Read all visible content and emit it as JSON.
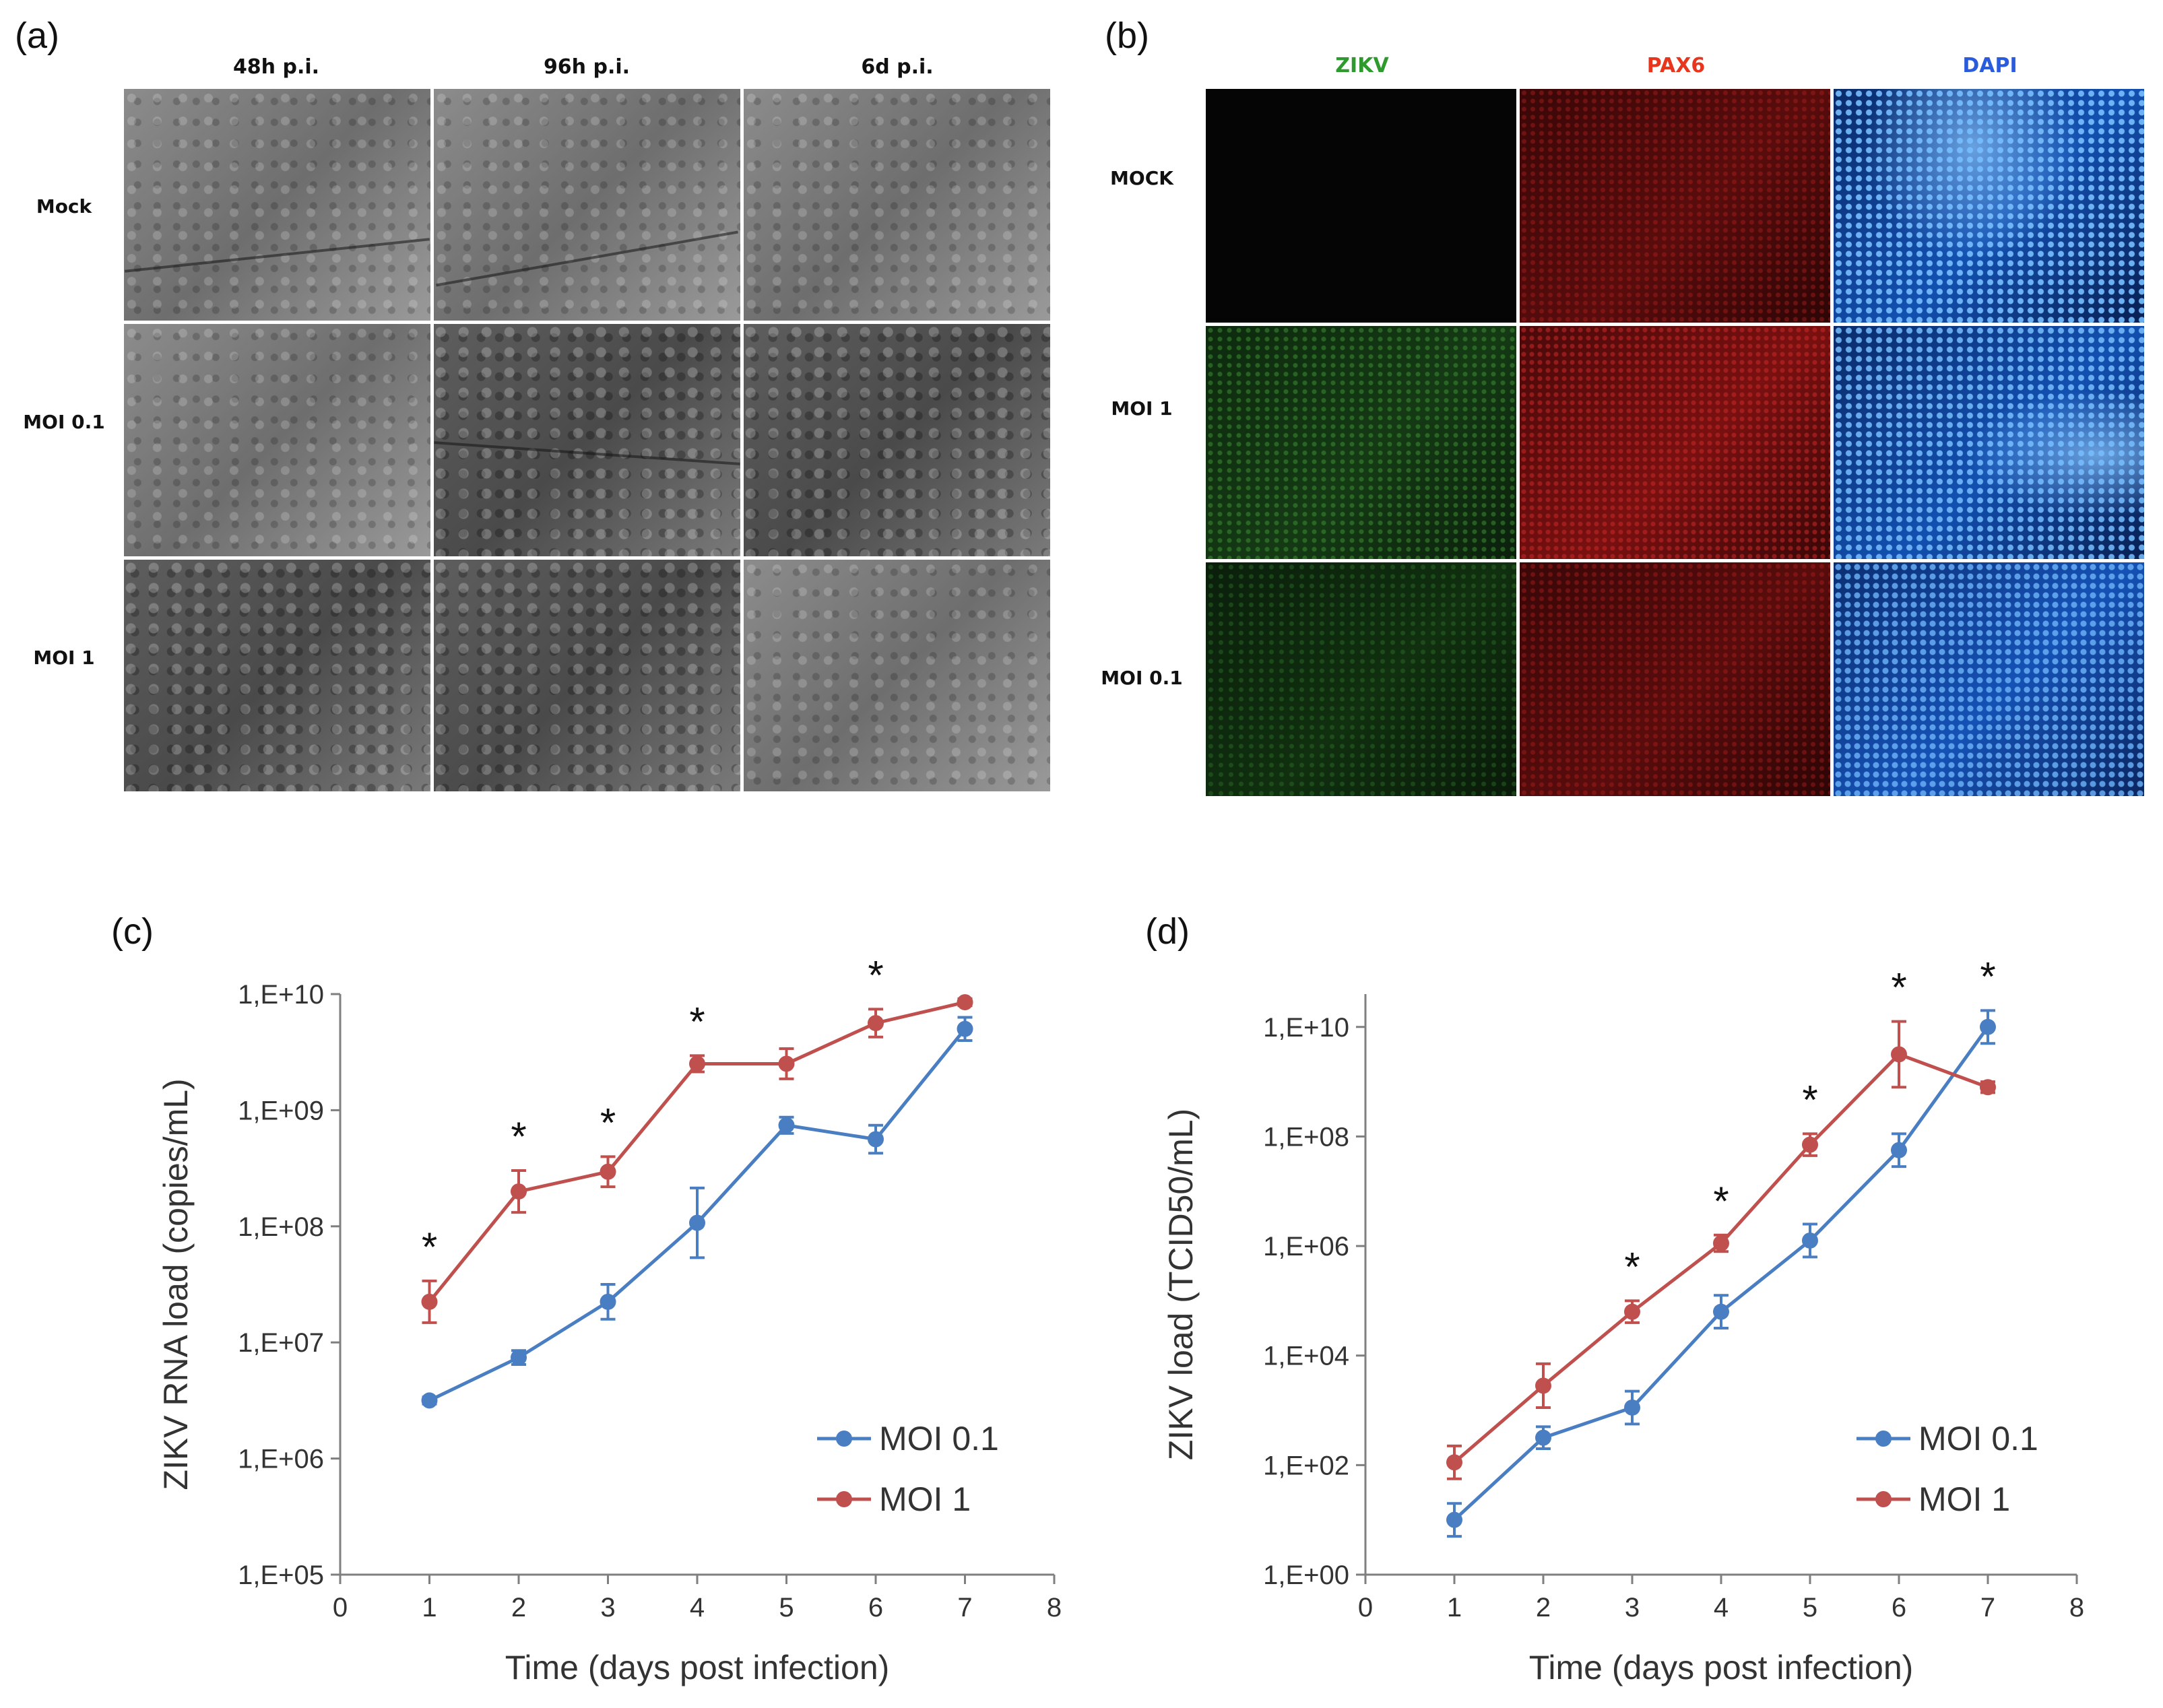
{
  "panels": {
    "a": {
      "letter": "(a)",
      "columns": [
        "48h p.i.",
        "96h p.i.",
        "6d p.i."
      ],
      "rows": [
        "Mock",
        "MOI 0.1",
        "MOI 1"
      ]
    },
    "b": {
      "letter": "(b)",
      "columns": [
        "ZIKV",
        "PAX6",
        "DAPI"
      ],
      "column_colors": [
        "#2e9a2e",
        "#e8351e",
        "#2a5bdc"
      ],
      "rows": [
        "MOCK",
        "MOI 1",
        "MOI 0.1"
      ]
    }
  },
  "chart_data": [
    {
      "id": "c",
      "letter": "(c)",
      "type": "line",
      "yscale": "log",
      "xlabel": "Time (days post infection)",
      "ylabel": "ZIKV RNA load (copies/mL)",
      "xlim": [
        0,
        8
      ],
      "xticks": [
        "0",
        "1",
        "2",
        "3",
        "4",
        "5",
        "6",
        "7",
        "8"
      ],
      "ylim_log10": [
        5,
        10
      ],
      "yticks": [
        "1,E+05",
        "1,E+06",
        "1,E+07",
        "1,E+08",
        "1,E+09",
        "1,E+10"
      ],
      "x": [
        1,
        2,
        3,
        4,
        5,
        6,
        7
      ],
      "series": [
        {
          "name": "MOI 0.1",
          "color": "#4a7ec2",
          "log10": [
            6.5,
            6.87,
            7.35,
            8.03,
            8.87,
            8.75,
            9.7
          ],
          "err_log10": [
            0.03,
            0.06,
            0.15,
            0.3,
            0.07,
            0.12,
            0.1
          ]
        },
        {
          "name": "MOI 1",
          "color": "#c0504d",
          "log10": [
            7.35,
            8.3,
            8.47,
            9.4,
            9.4,
            9.75,
            9.93
          ],
          "err_log10": [
            0.18,
            0.18,
            0.13,
            0.07,
            0.13,
            0.12,
            0.03
          ]
        }
      ],
      "significance": {
        "x": [
          1,
          2,
          3,
          4,
          6
        ],
        "label": "*"
      },
      "legend": "bottom-right"
    },
    {
      "id": "d",
      "letter": "(d)",
      "type": "line",
      "yscale": "log",
      "xlabel": "Time (days post infection)",
      "ylabel": "ZIKV load (TCID50/mL)",
      "xlim": [
        0,
        8
      ],
      "xticks": [
        "0",
        "1",
        "2",
        "3",
        "4",
        "5",
        "6",
        "7",
        "8"
      ],
      "ylim_log10": [
        0,
        10.6
      ],
      "yticks": [
        "1,E+00",
        "1,E+02",
        "1,E+04",
        "1,E+06",
        "1,E+08",
        "1,E+10"
      ],
      "ytick_log10": [
        0,
        2,
        4,
        6,
        8,
        10
      ],
      "x": [
        1,
        2,
        3,
        4,
        5,
        6,
        7
      ],
      "series": [
        {
          "name": "MOI 0.1",
          "color": "#4a7ec2",
          "log10": [
            1.0,
            2.5,
            3.05,
            4.8,
            6.1,
            7.75,
            10.0
          ],
          "err_log10": [
            0.3,
            0.2,
            0.3,
            0.3,
            0.3,
            0.3,
            0.3
          ]
        },
        {
          "name": "MOI 1",
          "color": "#c0504d",
          "log10": [
            2.05,
            3.45,
            4.8,
            6.05,
            7.85,
            9.5,
            8.9
          ],
          "err_log10": [
            0.3,
            0.4,
            0.2,
            0.15,
            0.2,
            0.6,
            0.1
          ]
        }
      ],
      "significance": {
        "x": [
          3,
          4,
          5,
          6,
          7
        ],
        "label": "*"
      },
      "legend": "bottom-right"
    }
  ]
}
